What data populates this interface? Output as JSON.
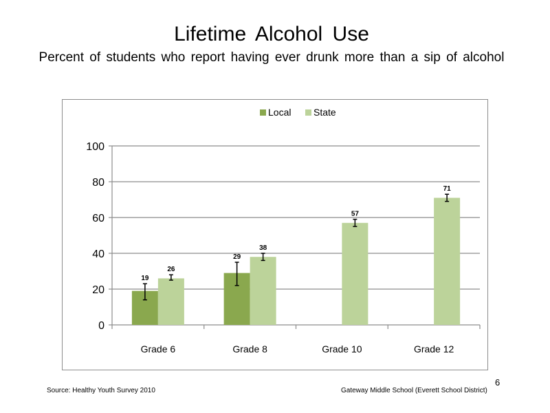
{
  "slide": {
    "title": "Lifetime Alcohol Use",
    "subtitle": "Percent of students who report having ever drunk more than a sip of alcohol",
    "page_number": "6"
  },
  "footer": {
    "source": "Source: Healthy Youth Survey 2010",
    "school": "Gateway Middle School (Everett School District)"
  },
  "chart_data": {
    "type": "bar",
    "title": "",
    "xlabel": "",
    "ylabel": "",
    "categories": [
      "Grade 6",
      "Grade 8",
      "Grade 10",
      "Grade 12"
    ],
    "ylim": [
      0,
      100
    ],
    "yticks": [
      0,
      20,
      40,
      60,
      80,
      100
    ],
    "grid": true,
    "legend_position": "top",
    "series": [
      {
        "name": "Local",
        "color": "#8aa84e",
        "values": [
          19,
          29,
          null,
          null
        ],
        "error_low": [
          14,
          22,
          null,
          null
        ],
        "error_high": [
          23,
          35,
          null,
          null
        ]
      },
      {
        "name": "State",
        "color": "#bcd39a",
        "values": [
          26,
          38,
          57,
          71
        ],
        "error_low": [
          25,
          36,
          55,
          69
        ],
        "error_high": [
          28,
          40,
          59,
          73
        ]
      }
    ]
  }
}
